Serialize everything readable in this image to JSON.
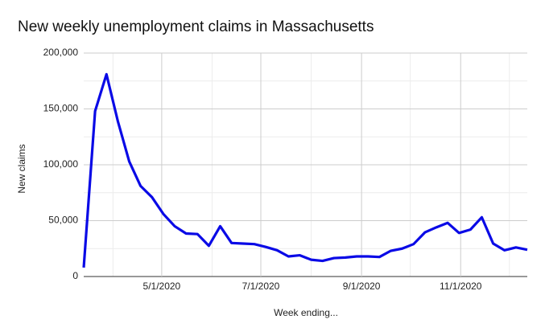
{
  "chart_data": {
    "type": "line",
    "title": "New weekly unemployment claims in Massachusetts",
    "x_label": "Week ending...",
    "y_label": "New claims",
    "x": [
      "3/14/2020",
      "3/21/2020",
      "3/28/2020",
      "4/4/2020",
      "4/11/2020",
      "4/18/2020",
      "4/25/2020",
      "5/2/2020",
      "5/9/2020",
      "5/16/2020",
      "5/23/2020",
      "5/30/2020",
      "6/6/2020",
      "6/13/2020",
      "6/20/2020",
      "6/27/2020",
      "7/4/2020",
      "7/11/2020",
      "7/18/2020",
      "7/25/2020",
      "8/1/2020",
      "8/8/2020",
      "8/15/2020",
      "8/22/2020",
      "8/29/2020",
      "9/5/2020",
      "9/12/2020",
      "9/19/2020",
      "9/26/2020",
      "10/3/2020",
      "10/10/2020",
      "10/17/2020",
      "10/24/2020",
      "10/31/2020",
      "11/7/2020",
      "11/14/2020",
      "11/21/2020",
      "11/28/2020",
      "12/5/2020",
      "12/12/2020"
    ],
    "series": [
      {
        "name": "New claims",
        "color": "#0a0ae6",
        "values": [
          8000,
          148000,
          181000,
          139000,
          103000,
          81000,
          71000,
          56000,
          45000,
          38500,
          38000,
          27500,
          45000,
          30000,
          29500,
          29000,
          26500,
          23500,
          18000,
          19000,
          15000,
          14000,
          16500,
          17000,
          18000,
          18000,
          17500,
          23000,
          25000,
          29000,
          39500,
          44000,
          48000,
          39000,
          42000,
          53000,
          29500,
          23500,
          26000,
          24000
        ]
      }
    ],
    "xlim": [
      "3/14/2020",
      "12/12/2020"
    ],
    "xticks": [
      "5/1/2020",
      "7/1/2020",
      "9/1/2020",
      "11/1/2020"
    ],
    "minor_xticks": [
      "4/1/2020",
      "6/1/2020",
      "8/1/2020",
      "10/1/2020",
      "12/1/2020"
    ],
    "ylim": [
      0,
      200000
    ],
    "yticks": [
      0,
      {
        "value": 50000,
        "label": "50,000"
      },
      {
        "value": 100000,
        "label": "100,000"
      },
      {
        "value": 150000,
        "label": "150,000"
      },
      {
        "value": 200000,
        "label": "200,000"
      }
    ],
    "minor_yticks": [
      25000,
      75000,
      125000,
      175000
    ],
    "grid": true
  }
}
